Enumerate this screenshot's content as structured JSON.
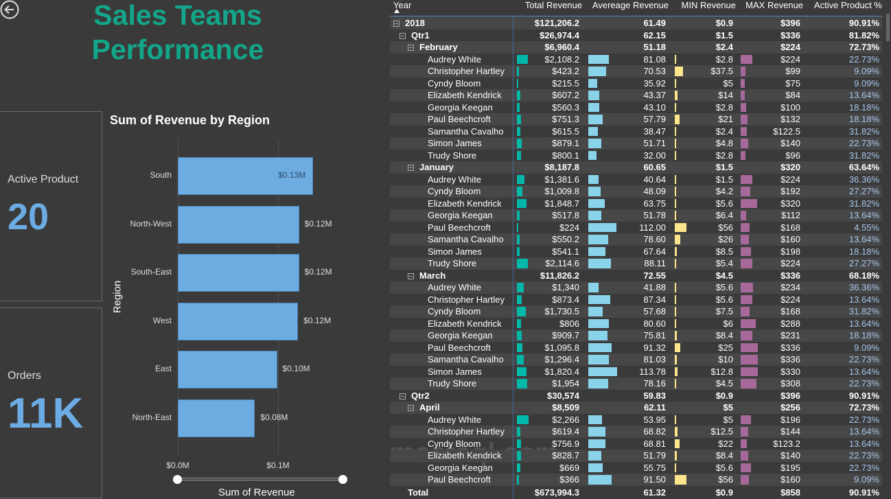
{
  "page": {
    "title_line1": "Sales Teams",
    "title_line2": "Performance",
    "back_icon": "arrow-left-circle-icon",
    "accent": "#13a68a"
  },
  "cards": {
    "active_product": {
      "label": "Active Product",
      "value": "20"
    },
    "orders": {
      "label": "Orders",
      "value": "11K"
    }
  },
  "watermark": {
    "text": "mostaql.com"
  },
  "chart_data": {
    "type": "bar",
    "orientation": "horizontal",
    "title": "Sum of Revenue by Region",
    "xlabel": "Sum of Revenue",
    "ylabel": "Region",
    "categories": [
      "South",
      "North-West",
      "South-East",
      "West",
      "East",
      "North-East"
    ],
    "values": [
      0.135,
      0.121,
      0.121,
      0.12,
      0.099,
      0.077
    ],
    "data_labels": [
      "$0.13M",
      "$0.12M",
      "$0.12M",
      "$0.12M",
      "$0.10M",
      "$0.08M"
    ],
    "x_ticks": [
      "$0.0M",
      "$0.1M"
    ],
    "xlim": [
      0,
      0.165
    ],
    "units": "$M",
    "bar_color": "#6cace0",
    "grid": true,
    "legend": "none"
  },
  "table": {
    "headers": [
      "Year",
      "Total Revenue",
      "Avereage Revenue",
      "MIN Revenue",
      "MAX Revenue",
      "Active Product %"
    ],
    "sort_indicator": "ascending",
    "bar_colors": {
      "total": "#01b8aa",
      "avg": "#8ad4eb",
      "min": "#fde58c",
      "max": "#a66999"
    },
    "rows": [
      [
        0,
        "2018",
        "$121,206.2",
        "61.49",
        "$0.9",
        "$396",
        "90.91%"
      ],
      [
        1,
        "Qtr1",
        "$26,974.4",
        "62.15",
        "$1.5",
        "$336",
        "81.82%"
      ],
      [
        2,
        "February",
        "$6,960.4",
        "51.18",
        "$2.4",
        "$224",
        "72.73%"
      ],
      [
        3,
        "Audrey White",
        "$2,108.2",
        "81.08",
        "$2.8",
        "$224",
        "22.73%"
      ],
      [
        3,
        "Christopher Hartley",
        "$423.2",
        "70.53",
        "$37.5",
        "$99",
        "9.09%"
      ],
      [
        3,
        "Cyndy Bloom",
        "$215.5",
        "35.92",
        "$5",
        "$75",
        "9.09%"
      ],
      [
        3,
        "Elizabeth Kendrick",
        "$607.2",
        "43.37",
        "$14",
        "$84",
        "13.64%"
      ],
      [
        3,
        "Georgia Keegan",
        "$560.3",
        "43.10",
        "$2.8",
        "$100",
        "18.18%"
      ],
      [
        3,
        "Paul Beechcroft",
        "$751.3",
        "57.79",
        "$21",
        "$132",
        "18.18%"
      ],
      [
        3,
        "Samantha Cavalho",
        "$615.5",
        "38.47",
        "$2.4",
        "$122.5",
        "31.82%"
      ],
      [
        3,
        "Simon James",
        "$879.1",
        "51.71",
        "$4.8",
        "$140",
        "22.73%"
      ],
      [
        3,
        "Trudy Shore",
        "$800.1",
        "32.00",
        "$2.8",
        "$96",
        "31.82%"
      ],
      [
        2,
        "January",
        "$8,187.8",
        "60.65",
        "$1.5",
        "$320",
        "63.64%"
      ],
      [
        3,
        "Audrey White",
        "$1,381.6",
        "40.64",
        "$1.5",
        "$224",
        "36.36%"
      ],
      [
        3,
        "Cyndy Bloom",
        "$1,009.8",
        "48.09",
        "$4.2",
        "$192",
        "27.27%"
      ],
      [
        3,
        "Elizabeth Kendrick",
        "$1,848.7",
        "63.75",
        "$5.6",
        "$320",
        "31.82%"
      ],
      [
        3,
        "Georgia Keegan",
        "$517.8",
        "51.78",
        "$6.4",
        "$112",
        "13.64%"
      ],
      [
        3,
        "Paul Beechcroft",
        "$224",
        "112.00",
        "$56",
        "$168",
        "4.55%"
      ],
      [
        3,
        "Samantha Cavalho",
        "$550.2",
        "78.60",
        "$26",
        "$160",
        "13.64%"
      ],
      [
        3,
        "Simon James",
        "$541.1",
        "67.64",
        "$8.5",
        "$198",
        "18.18%"
      ],
      [
        3,
        "Trudy Shore",
        "$2,114.6",
        "88.11",
        "$5.4",
        "$224",
        "27.27%"
      ],
      [
        2,
        "March",
        "$11,826.2",
        "72.55",
        "$4.5",
        "$336",
        "68.18%"
      ],
      [
        3,
        "Audrey White",
        "$1,340",
        "41.88",
        "$5.6",
        "$234",
        "36.36%"
      ],
      [
        3,
        "Christopher Hartley",
        "$873.4",
        "87.34",
        "$5.6",
        "$224",
        "13.64%"
      ],
      [
        3,
        "Cyndy Bloom",
        "$1,730.5",
        "57.68",
        "$7.5",
        "$168",
        "31.82%"
      ],
      [
        3,
        "Elizabeth Kendrick",
        "$806",
        "80.60",
        "$6",
        "$288",
        "13.64%"
      ],
      [
        3,
        "Georgia Keegan",
        "$909.7",
        "75.81",
        "$8.4",
        "$231",
        "18.18%"
      ],
      [
        3,
        "Paul Beechcroft",
        "$1,095.8",
        "91.32",
        "$25",
        "$336",
        "9.09%"
      ],
      [
        3,
        "Samantha Cavalho",
        "$1,296.4",
        "81.03",
        "$10",
        "$336",
        "22.73%"
      ],
      [
        3,
        "Simon James",
        "$1,820.4",
        "113.78",
        "$12.8",
        "$330",
        "13.64%"
      ],
      [
        3,
        "Trudy Shore",
        "$1,954",
        "78.16",
        "$4.5",
        "$308",
        "22.73%"
      ],
      [
        1,
        "Qtr2",
        "$30,574",
        "59.83",
        "$0.9",
        "$396",
        "90.91%"
      ],
      [
        2,
        "April",
        "$8,509",
        "62.11",
        "$5",
        "$256",
        "72.73%"
      ],
      [
        3,
        "Audrey White",
        "$2,266",
        "53.95",
        "$5",
        "$196",
        "22.73%"
      ],
      [
        3,
        "Christopher Hartley",
        "$619.4",
        "68.82",
        "$12.5",
        "$144",
        "13.64%"
      ],
      [
        3,
        "Cyndy Bloom",
        "$756.9",
        "68.81",
        "$22",
        "$123.2",
        "13.64%"
      ],
      [
        3,
        "Elizabeth Kendrick",
        "$828.7",
        "51.79",
        "$8.4",
        "$140",
        "22.73%"
      ],
      [
        3,
        "Georgia Keegan",
        "$669",
        "55.75",
        "$5.6",
        "$195",
        "22.73%"
      ],
      [
        3,
        "Paul Beechcroft",
        "$366",
        "91.50",
        "$56",
        "$160",
        "9.09%"
      ]
    ],
    "total": [
      "Total",
      "$673,994.3",
      "61.32",
      "$0.9",
      "$858",
      "90.91%"
    ]
  }
}
